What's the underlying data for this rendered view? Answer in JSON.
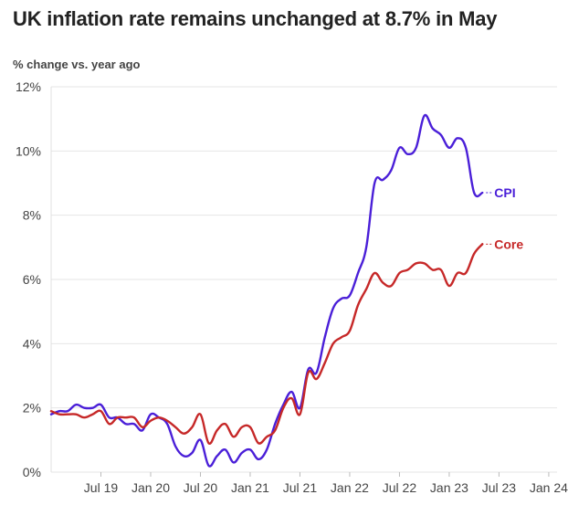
{
  "chart_data": {
    "type": "line",
    "title": "UK inflation rate remains unchanged at 8.7% in May",
    "ylabel": "% change vs. year ago",
    "xlabel": "",
    "ylim": [
      0,
      12
    ],
    "grid": true,
    "y_ticks": [
      {
        "value": 0,
        "label": "0%"
      },
      {
        "value": 2,
        "label": "2%"
      },
      {
        "value": 4,
        "label": "4%"
      },
      {
        "value": 6,
        "label": "6%"
      },
      {
        "value": 8,
        "label": "8%"
      },
      {
        "value": 10,
        "label": "10%"
      },
      {
        "value": 12,
        "label": "12%"
      }
    ],
    "x_ticks": [
      {
        "t": 6,
        "label": "Jul 19"
      },
      {
        "t": 12,
        "label": "Jan 20"
      },
      {
        "t": 18,
        "label": "Jul 20"
      },
      {
        "t": 24,
        "label": "Jan 21"
      },
      {
        "t": 30,
        "label": "Jul 21"
      },
      {
        "t": 36,
        "label": "Jan 22"
      },
      {
        "t": 42,
        "label": "Jul 22"
      },
      {
        "t": 48,
        "label": "Jan 23"
      },
      {
        "t": 54,
        "label": "Jul 23"
      },
      {
        "t": 60,
        "label": "Jan 24"
      }
    ],
    "x_range": [
      0,
      61
    ],
    "x_note": "t = months since Jan 2019 (t=0 is Jan 2019)",
    "series": [
      {
        "name": "CPI",
        "color": "#4a1fd8",
        "end_label": "CPI",
        "start_t": 0,
        "values": [
          1.8,
          1.9,
          1.9,
          2.1,
          2.0,
          2.0,
          2.1,
          1.7,
          1.7,
          1.5,
          1.5,
          1.3,
          1.8,
          1.7,
          1.5,
          0.8,
          0.5,
          0.6,
          1.0,
          0.2,
          0.5,
          0.7,
          0.3,
          0.6,
          0.7,
          0.4,
          0.7,
          1.5,
          2.1,
          2.5,
          2.0,
          3.2,
          3.1,
          4.2,
          5.1,
          5.4,
          5.5,
          6.2,
          7.0,
          9.0,
          9.1,
          9.4,
          10.1,
          9.9,
          10.1,
          11.1,
          10.7,
          10.5,
          10.1,
          10.4,
          10.1,
          8.7,
          8.7
        ]
      },
      {
        "name": "Core",
        "color": "#c62828",
        "end_label": "Core",
        "start_t": 0,
        "values": [
          1.9,
          1.8,
          1.8,
          1.8,
          1.7,
          1.8,
          1.9,
          1.5,
          1.7,
          1.7,
          1.7,
          1.4,
          1.6,
          1.7,
          1.6,
          1.4,
          1.2,
          1.4,
          1.8,
          0.9,
          1.3,
          1.5,
          1.1,
          1.4,
          1.4,
          0.9,
          1.1,
          1.3,
          2.0,
          2.3,
          1.8,
          3.1,
          2.9,
          3.4,
          4.0,
          4.2,
          4.4,
          5.2,
          5.7,
          6.2,
          5.9,
          5.8,
          6.2,
          6.3,
          6.5,
          6.5,
          6.3,
          6.3,
          5.8,
          6.2,
          6.2,
          6.8,
          7.1
        ]
      }
    ]
  }
}
